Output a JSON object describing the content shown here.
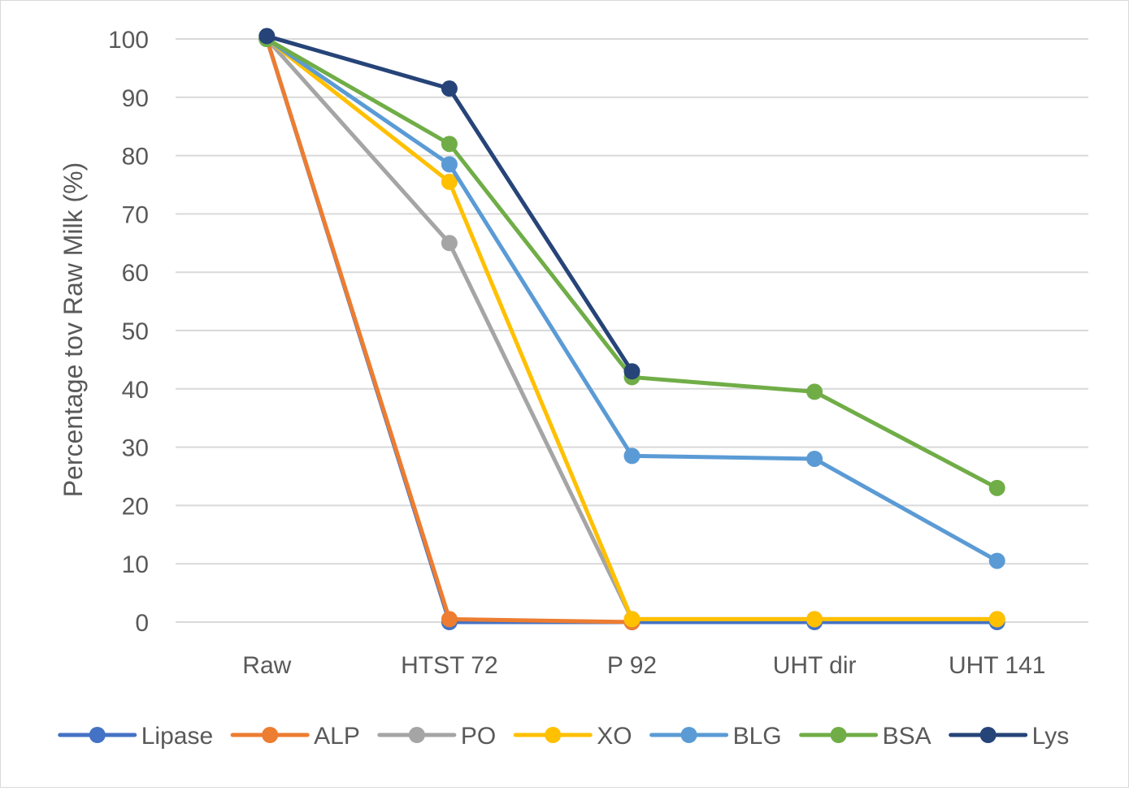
{
  "chart_data": {
    "type": "line",
    "title": "",
    "xlabel": "",
    "ylabel": "Percentage tov Raw Milk (%)",
    "categories": [
      "Raw",
      "HTST 72",
      "P 92",
      "UHT dir",
      "UHT 141"
    ],
    "ylim": [
      0,
      100
    ],
    "yticks": [
      "0",
      "10",
      "20",
      "30",
      "40",
      "50",
      "60",
      "70",
      "80",
      "90",
      "100"
    ],
    "grid": true,
    "legend_position": "bottom",
    "series": [
      {
        "name": "Lipase",
        "color": "#4472C4",
        "values": [
          100,
          0,
          0,
          0,
          0
        ]
      },
      {
        "name": "ALP",
        "color": "#ED7D31",
        "values": [
          100,
          0.5,
          0,
          null,
          null
        ]
      },
      {
        "name": "PO",
        "color": "#A5A5A5",
        "values": [
          100,
          65,
          0.5,
          0.5,
          0.5
        ]
      },
      {
        "name": "XO",
        "color": "#FFC000",
        "values": [
          100,
          75.5,
          0.5,
          0.5,
          0.5
        ]
      },
      {
        "name": "BLG",
        "color": "#5B9BD5",
        "values": [
          100,
          78.5,
          28.5,
          28,
          10.5
        ]
      },
      {
        "name": "BSA",
        "color": "#70AD47",
        "values": [
          100,
          82,
          42,
          39.5,
          23
        ]
      },
      {
        "name": "Lys",
        "color": "#264478",
        "values": [
          100.5,
          91.5,
          43,
          null,
          null
        ]
      }
    ]
  }
}
